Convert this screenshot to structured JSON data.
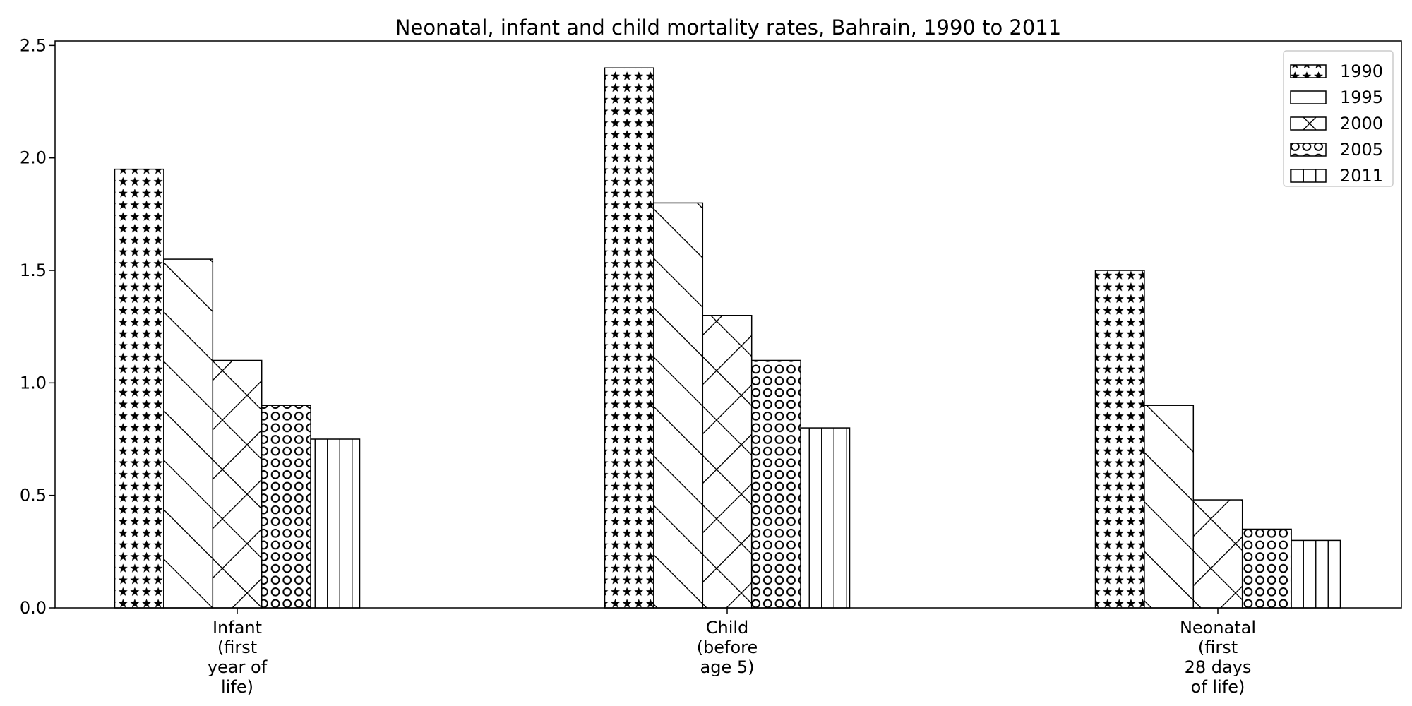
{
  "chart_data": {
    "type": "bar",
    "title": "Neonatal, infant and child mortality rates, Bahrain, 1990 to 2011",
    "xlabel": "",
    "ylabel": "",
    "categories": [
      [
        "Infant",
        "(first",
        "year of",
        "life)"
      ],
      [
        "Child",
        "(before",
        "age 5)"
      ],
      [
        "Neonatal",
        "(first",
        "28 days",
        "of life)"
      ]
    ],
    "series": [
      {
        "name": "1990",
        "hatch": "stars",
        "values": [
          1.95,
          2.4,
          1.5
        ]
      },
      {
        "name": "1995",
        "hatch": "diagonal",
        "values": [
          1.55,
          1.8,
          0.9
        ]
      },
      {
        "name": "2000",
        "hatch": "crosshatch",
        "values": [
          1.1,
          1.3,
          0.48
        ]
      },
      {
        "name": "2005",
        "hatch": "circles",
        "values": [
          0.9,
          1.1,
          0.35
        ]
      },
      {
        "name": "2011",
        "hatch": "vertical",
        "values": [
          0.75,
          0.8,
          0.3
        ]
      }
    ],
    "ylim": [
      0,
      2.52
    ],
    "yticks": [
      "0.0",
      "0.5",
      "1.0",
      "1.5",
      "2.0",
      "2.5"
    ],
    "grid": false,
    "legend_position": "top-right",
    "colors": {
      "bar_fill": "#ffffff",
      "edge": "#000000"
    }
  }
}
